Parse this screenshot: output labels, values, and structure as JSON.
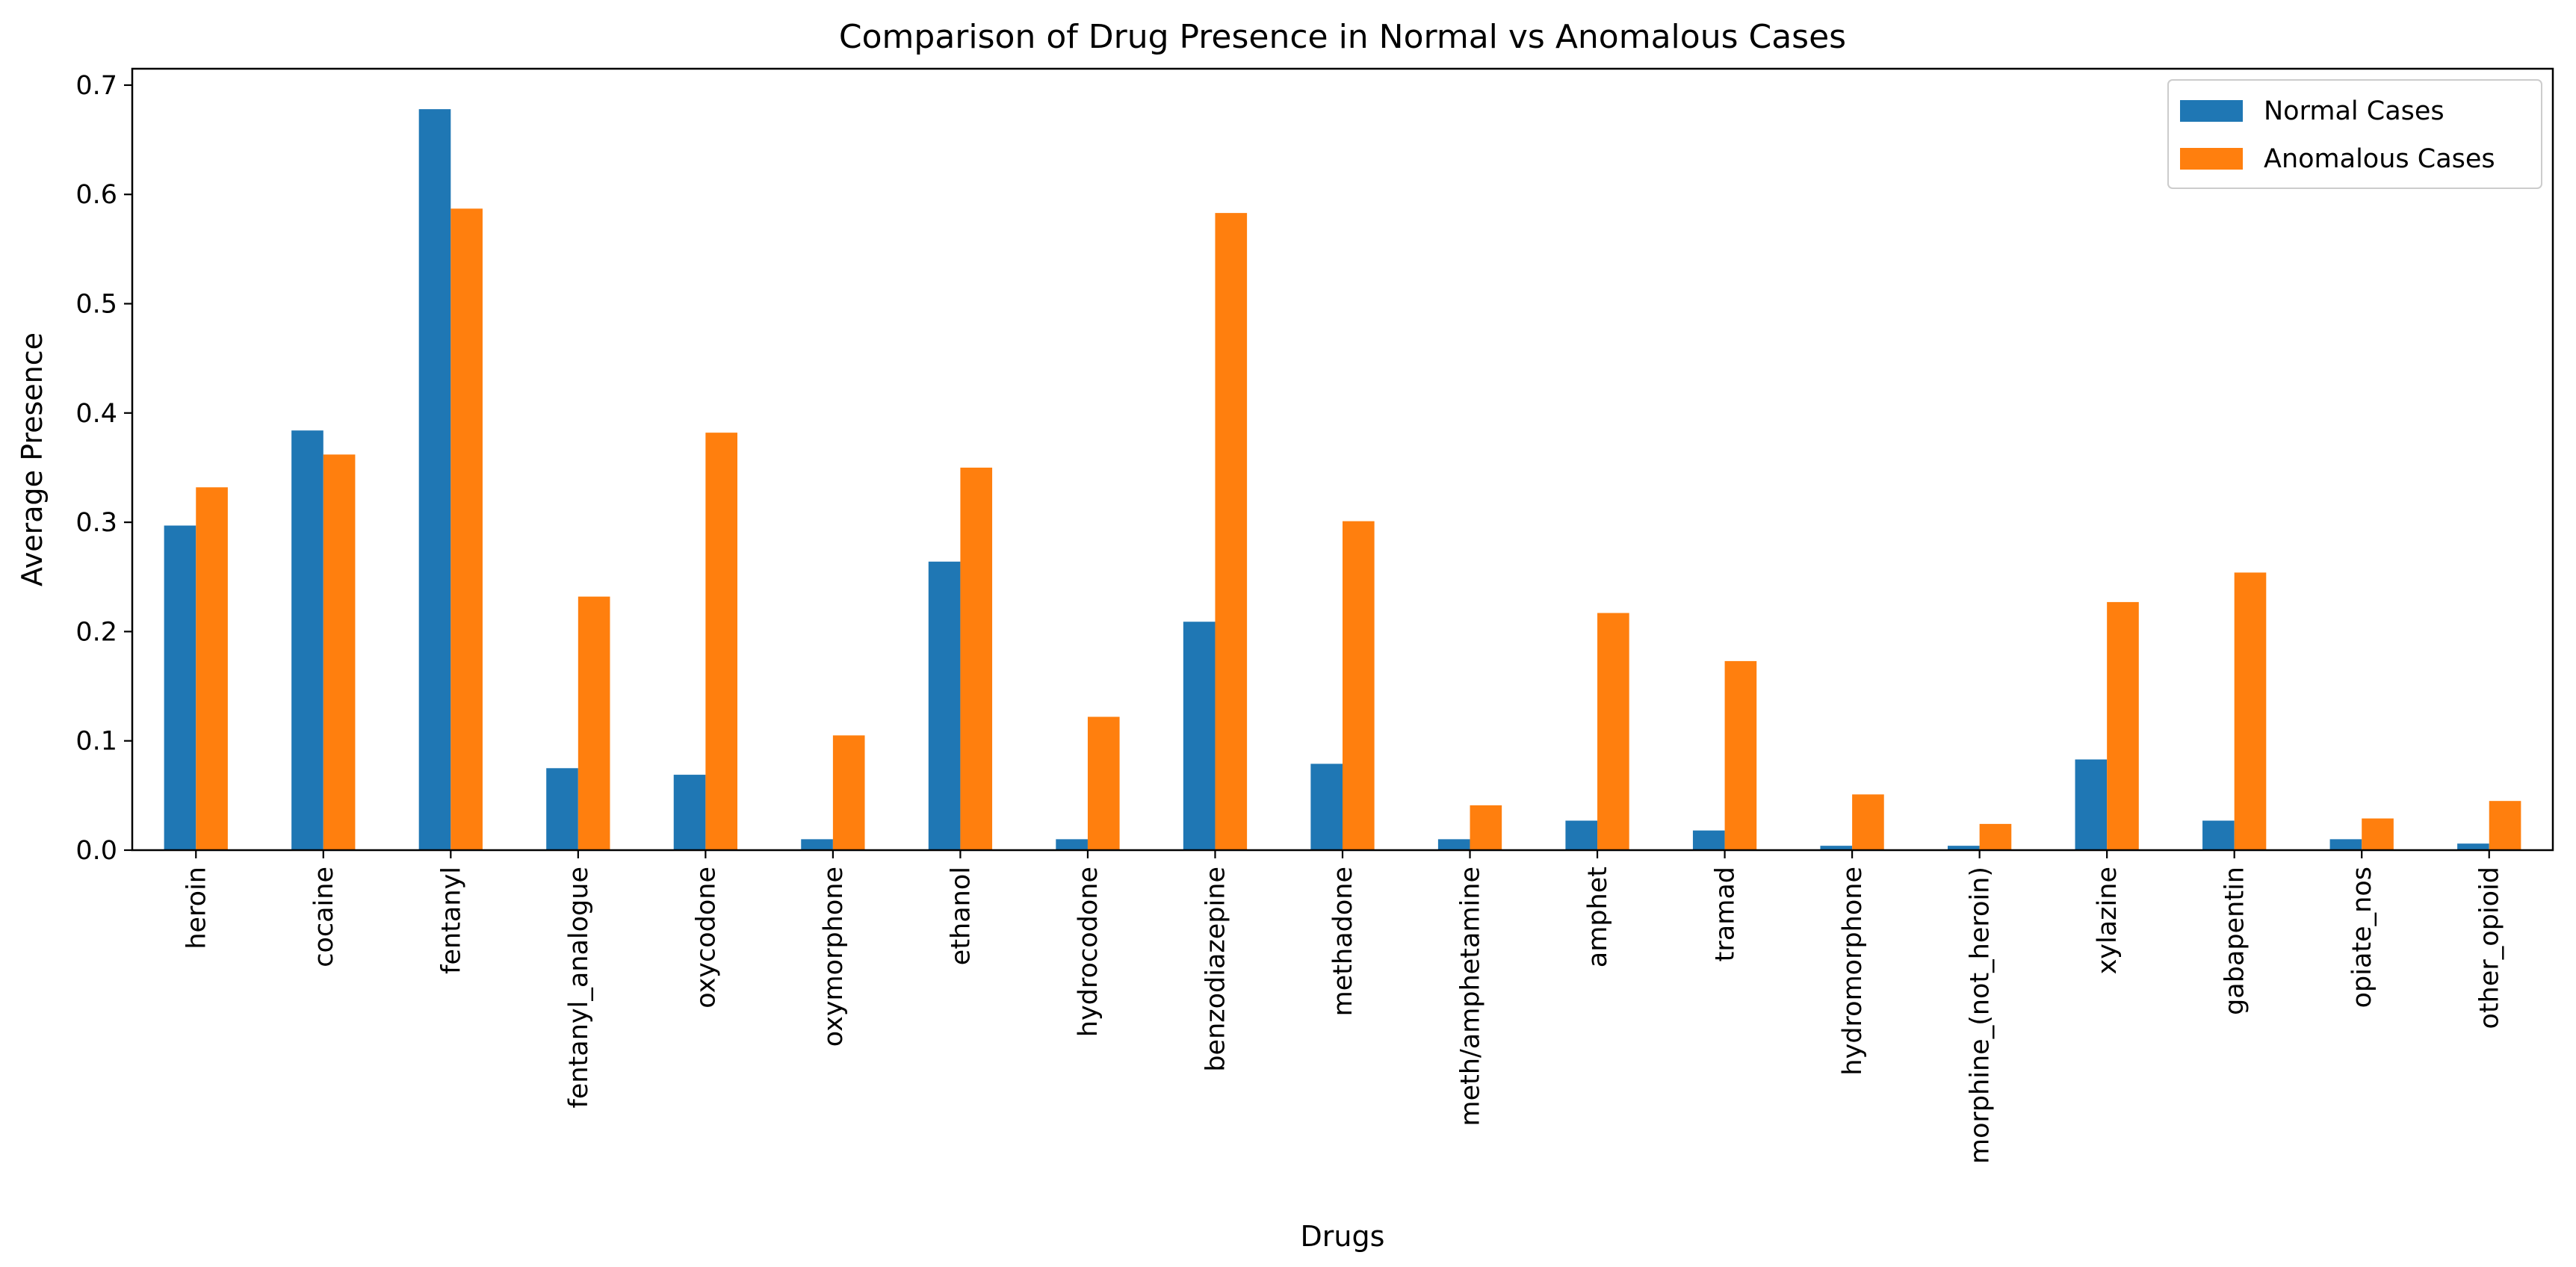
{
  "chart_data": {
    "type": "bar",
    "title": "Comparison of Drug Presence in Normal vs Anomalous Cases",
    "xlabel": "Drugs",
    "ylabel": "Average Presence",
    "ylim": [
      0,
      0.715
    ],
    "yticks": [
      0.0,
      0.1,
      0.2,
      0.3,
      0.4,
      0.5,
      0.6,
      0.7
    ],
    "ytick_labels": [
      "0.0",
      "0.1",
      "0.2",
      "0.3",
      "0.4",
      "0.5",
      "0.6",
      "0.7"
    ],
    "grid": false,
    "legend_position": "top-right",
    "categories": [
      "heroin",
      "cocaine",
      "fentanyl",
      "fentanyl_analogue",
      "oxycodone",
      "oxymorphone",
      "ethanol",
      "hydrocodone",
      "benzodiazepine",
      "methadone",
      "meth/amphetamine",
      "amphet",
      "tramad",
      "hydromorphone",
      "morphine_(not_heroin)",
      "xylazine",
      "gabapentin",
      "opiate_nos",
      "other_opioid"
    ],
    "series": [
      {
        "name": "Normal Cases",
        "color": "#1f77b4",
        "values": [
          0.297,
          0.384,
          0.678,
          0.075,
          0.069,
          0.01,
          0.264,
          0.01,
          0.209,
          0.079,
          0.01,
          0.027,
          0.018,
          0.004,
          0.004,
          0.083,
          0.027,
          0.01,
          0.006
        ]
      },
      {
        "name": "Anomalous Cases",
        "color": "#ff7f0e",
        "values": [
          0.332,
          0.362,
          0.587,
          0.232,
          0.382,
          0.105,
          0.35,
          0.122,
          0.583,
          0.301,
          0.041,
          0.217,
          0.173,
          0.051,
          0.024,
          0.227,
          0.254,
          0.029,
          0.045
        ]
      }
    ]
  }
}
